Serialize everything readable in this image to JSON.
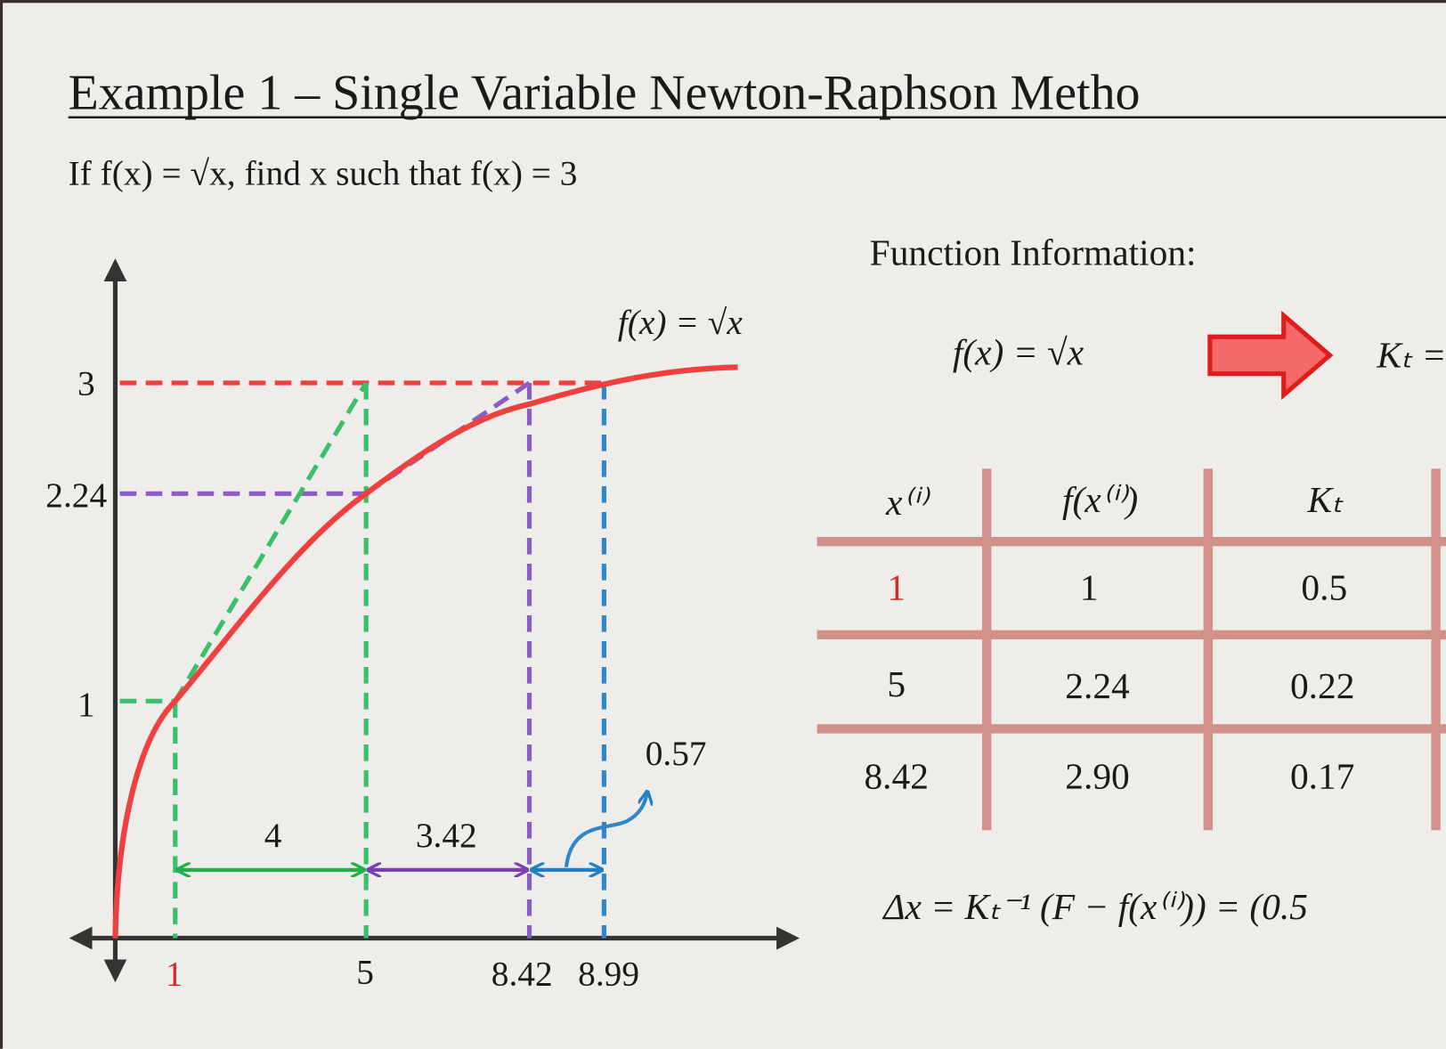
{
  "header": {
    "title": "Example 1 – Single Variable Newton-Raphson Metho"
  },
  "problem": "If f(x) = √x, find x such that f(x) = 3",
  "graph": {
    "curve_label": "f(x) = √x",
    "y_labels": [
      "3",
      "2.24",
      "1"
    ],
    "x_labels": [
      "1",
      "5",
      "8.42",
      "8.99"
    ],
    "step_labels": [
      "4",
      "3.42",
      "0.57"
    ]
  },
  "info": {
    "heading": "Function Information:",
    "function": "f(x) = √x",
    "kt": "Kₜ ="
  },
  "table": {
    "header": [
      "x⁽ⁱ⁾",
      "f(x⁽ⁱ⁾)",
      "Kₜ"
    ],
    "rows": [
      [
        "1",
        "1",
        "0.5"
      ],
      [
        "5",
        "2.24",
        "0.22"
      ],
      [
        "8.42",
        "2.90",
        "0.17"
      ]
    ]
  },
  "equation": "Δx = Kₜ⁻¹ (F − f(x⁽ⁱ⁾)) = (0.5"
}
